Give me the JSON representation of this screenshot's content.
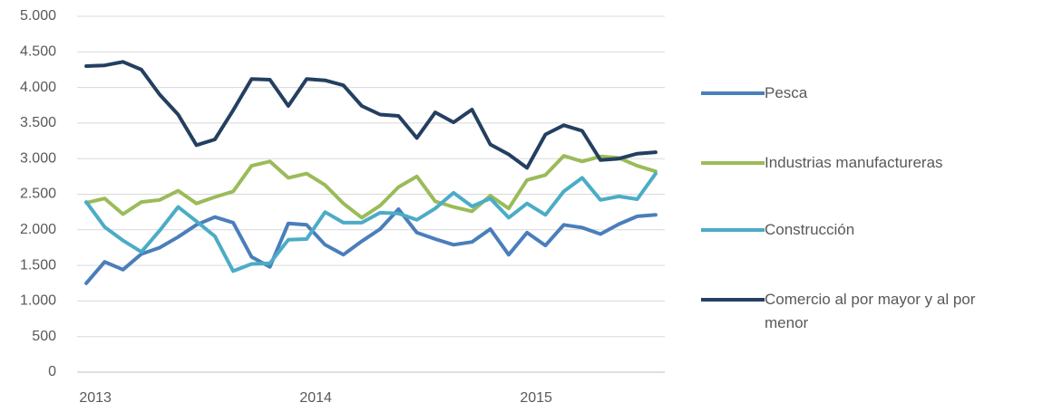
{
  "chart_data": {
    "type": "line",
    "categories": [
      "2013",
      null,
      null,
      null,
      null,
      null,
      null,
      null,
      null,
      null,
      null,
      null,
      "2014",
      null,
      null,
      null,
      null,
      null,
      null,
      null,
      null,
      null,
      null,
      null,
      "2015",
      null,
      null,
      null,
      null,
      null,
      null,
      null
    ],
    "series": [
      {
        "name": "Pesca",
        "color": "#4a7ebb",
        "values": [
          1250,
          1550,
          1440,
          1660,
          1750,
          1900,
          2070,
          2180,
          2100,
          1620,
          1480,
          2090,
          2070,
          1790,
          1650,
          1840,
          2010,
          2290,
          1960,
          1870,
          1790,
          1830,
          2010,
          1650,
          1960,
          1780,
          2070,
          2030,
          1940,
          2080,
          2190,
          2210
        ]
      },
      {
        "name": "Industrias manufactureras",
        "color": "#9bbb59",
        "values": [
          2380,
          2440,
          2220,
          2390,
          2420,
          2550,
          2370,
          2460,
          2540,
          2900,
          2960,
          2730,
          2790,
          2630,
          2370,
          2170,
          2340,
          2600,
          2750,
          2400,
          2320,
          2260,
          2480,
          2300,
          2700,
          2770,
          3040,
          2960,
          3030,
          3010,
          2900,
          2820
        ]
      },
      {
        "name": "Construcción",
        "color": "#4bacc6",
        "values": [
          2390,
          2040,
          1850,
          1690,
          1990,
          2320,
          2120,
          1910,
          1420,
          1520,
          1530,
          1860,
          1870,
          2250,
          2100,
          2100,
          2240,
          2230,
          2140,
          2300,
          2520,
          2330,
          2440,
          2170,
          2370,
          2210,
          2540,
          2730,
          2420,
          2470,
          2430,
          2790
        ]
      },
      {
        "name": "Comercio al por mayor y al por menor",
        "color": "#243f60",
        "values": [
          4300,
          4310,
          4360,
          4250,
          3900,
          3620,
          3190,
          3270,
          3680,
          4120,
          4110,
          3740,
          4120,
          4100,
          4030,
          3740,
          3620,
          3600,
          3290,
          3650,
          3510,
          3690,
          3200,
          3060,
          2870,
          3340,
          3470,
          3390,
          2980,
          3000,
          3070,
          3090
        ]
      }
    ],
    "ylim": [
      0,
      5000
    ],
    "yticks": [
      0,
      500,
      {
        "value": 1000,
        "label": "1.000"
      },
      {
        "value": 1500,
        "label": "1.500"
      },
      {
        "value": 2000,
        "label": "2.000"
      },
      {
        "value": 2500,
        "label": "2.500"
      },
      {
        "value": 3000,
        "label": "3.000"
      },
      {
        "value": 3500,
        "label": "3.500"
      },
      {
        "value": 4000,
        "label": "4.000"
      },
      {
        "value": 4500,
        "label": "4.500"
      },
      {
        "value": 5000,
        "label": "5.000"
      }
    ],
    "grid": true,
    "legend": "right"
  }
}
